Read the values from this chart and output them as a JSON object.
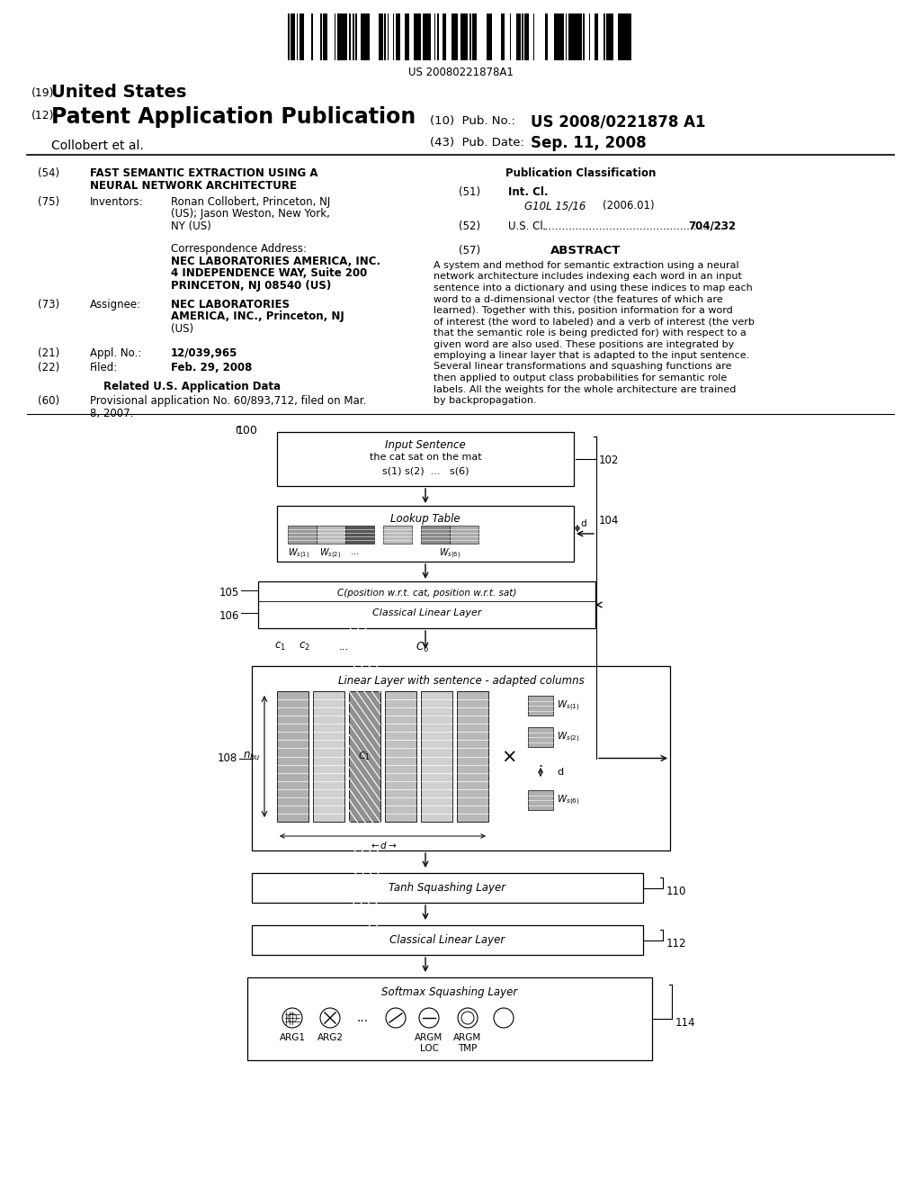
{
  "bg_color": "#ffffff",
  "barcode_text": "US 20080221878A1",
  "us_text": "United States",
  "us_num": "(19)",
  "patent_text": "Patent Application Publication",
  "patent_num": "(12)",
  "author_text": "Collobert et al.",
  "pub_no_label": "(10)  Pub. No.:",
  "pub_no_val": "US 2008/0221878 A1",
  "pub_date_label": "(43)  Pub. Date:",
  "pub_date_val": "Sep. 11, 2008",
  "title_num": "(54)",
  "title_line1": "FAST SEMANTIC EXTRACTION USING A",
  "title_line2": "NEURAL NETWORK ARCHITECTURE",
  "inventors_num": "(75)",
  "inventors_label": "Inventors:",
  "inventors_val1": "Ronan Collobert, Princeton, NJ",
  "inventors_val2": "(US); Jason Weston, New York,",
  "inventors_val3": "NY (US)",
  "corr_label": "Correspondence Address:",
  "corr_val1": "NEC LABORATORIES AMERICA, INC.",
  "corr_val2": "4 INDEPENDENCE WAY, Suite 200",
  "corr_val3": "PRINCETON, NJ 08540 (US)",
  "assignee_num": "(73)",
  "assignee_label": "Assignee:",
  "assignee_val1": "NEC LABORATORIES",
  "assignee_val2": "AMERICA, INC., Princeton, NJ",
  "assignee_val3": "(US)",
  "appl_num": "(21)",
  "appl_label": "Appl. No.:",
  "appl_val": "12/039,965",
  "filed_num": "(22)",
  "filed_label": "Filed:",
  "filed_val": "Feb. 29, 2008",
  "related_label": "Related U.S. Application Data",
  "provisional_num": "(60)",
  "provisional_val1": "Provisional application No. 60/893,712, filed on Mar.",
  "provisional_val2": "8, 2007.",
  "pub_class_label": "Publication Classification",
  "int_cl_num": "(51)",
  "int_cl_label": "Int. Cl.",
  "int_cl_val": "G10L 15/16",
  "int_cl_year": "(2006.01)",
  "us_cl_num": "(52)",
  "us_cl_label": "U.S. Cl.",
  "us_cl_dots": "......................................................",
  "us_cl_val": "704/232",
  "abstract_num": "(57)",
  "abstract_label": "ABSTRACT",
  "abstract_text1": "A system and method for semantic extraction using a neural",
  "abstract_text2": "network architecture includes indexing each word in an input",
  "abstract_text3": "sentence into a dictionary and using these indices to map each",
  "abstract_text4": "word to a d-dimensional vector (the features of which are",
  "abstract_text5": "learned). Together with this, position information for a word",
  "abstract_text6": "of interest (the word to labeled) and a verb of interest (the verb",
  "abstract_text7": "that the semantic role is being predicted for) with respect to a",
  "abstract_text8": "given word are also used. These positions are integrated by",
  "abstract_text9": "employing a linear layer that is adapted to the input sentence.",
  "abstract_text10": "Several linear transformations and squashing functions are",
  "abstract_text11": "then applied to output class probabilities for semantic role",
  "abstract_text12": "labels. All the weights for the whole architecture are trained",
  "abstract_text13": "by backpropagation."
}
